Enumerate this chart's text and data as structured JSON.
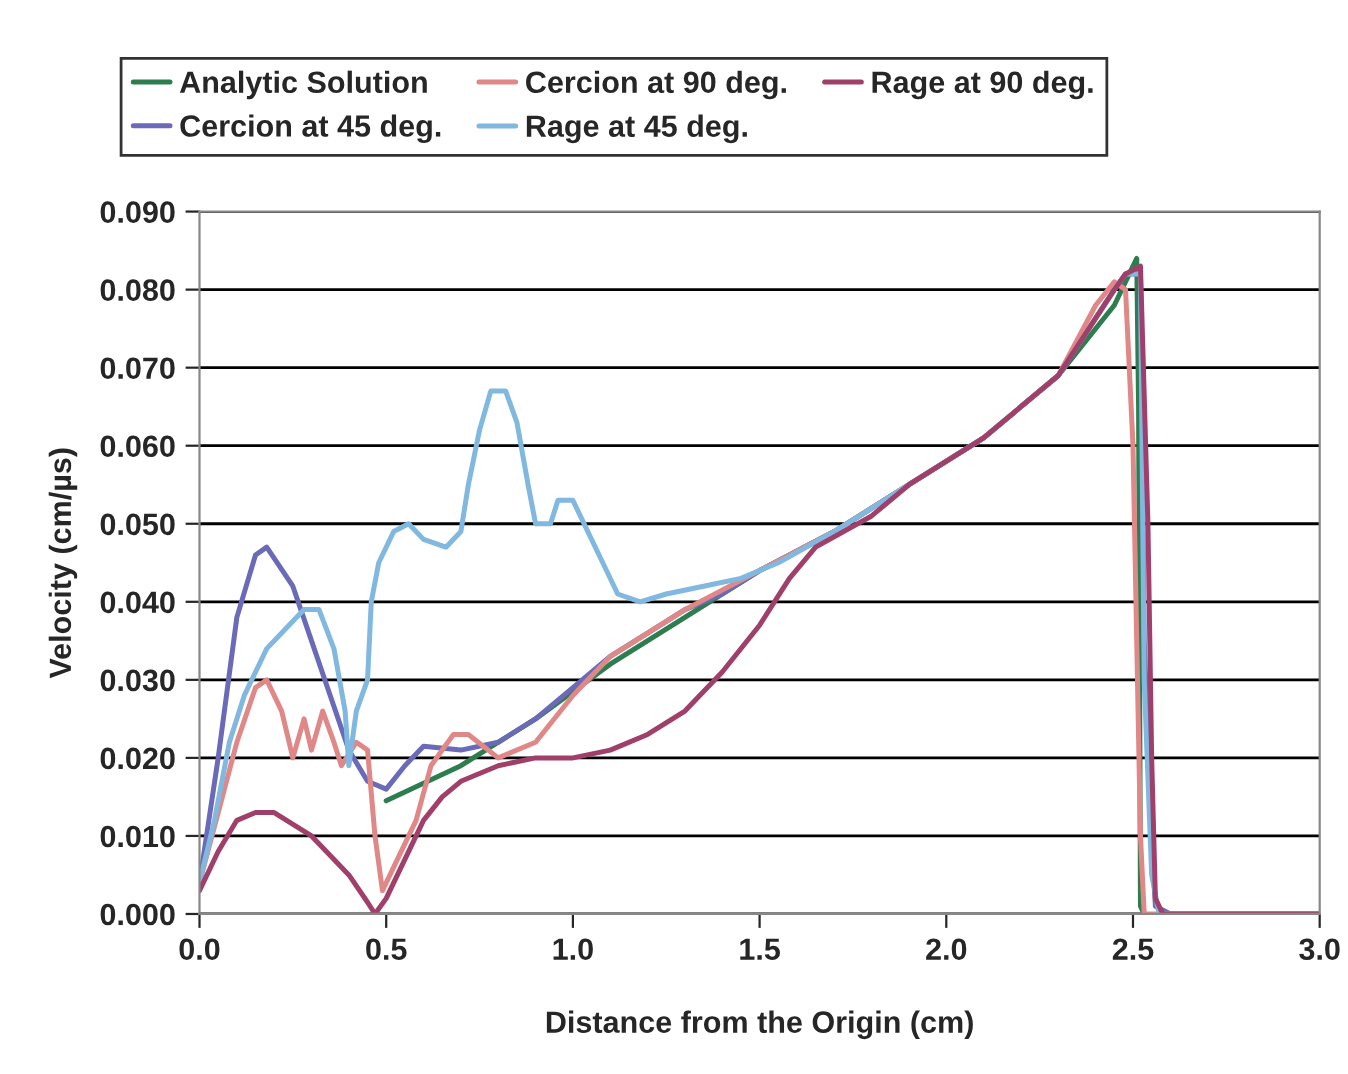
{
  "chart_data": {
    "type": "line",
    "xlabel": "Distance from the Origin (cm)",
    "ylabel": "Velocity (cm/µs)",
    "xlim": [
      0,
      3.0
    ],
    "xticks": [
      {
        "value": 0,
        "label": "0.0"
      },
      {
        "value": 0.5,
        "label": "0.5"
      },
      {
        "value": 1.0,
        "label": "1.0"
      },
      {
        "value": 1.5,
        "label": "1.5"
      },
      {
        "value": 2.0,
        "label": "2.0"
      },
      {
        "value": 2.5,
        "label": "2.5"
      },
      {
        "value": 3.0,
        "label": "3.0"
      }
    ],
    "ylim": [
      0,
      0.09
    ],
    "yticks": [
      {
        "value": 0,
        "label": "0.000"
      },
      {
        "value": 0.01,
        "label": "0.010"
      },
      {
        "value": 0.02,
        "label": "0.020"
      },
      {
        "value": 0.03,
        "label": "0.030"
      },
      {
        "value": 0.04,
        "label": "0.040"
      },
      {
        "value": 0.05,
        "label": "0.050"
      },
      {
        "value": 0.06,
        "label": "0.060"
      },
      {
        "value": 0.07,
        "label": "0.070"
      },
      {
        "value": 0.08,
        "label": "0.080"
      },
      {
        "value": 0.09,
        "label": "0.090"
      }
    ],
    "grid": "y",
    "legend": "top",
    "marker": "none",
    "line_style": "solid",
    "series": [
      {
        "name": "Analytic Solution",
        "color": "#2e7d4f",
        "x": [
          0.5,
          0.7,
          0.9,
          1.1,
          1.3,
          1.5,
          1.7,
          1.9,
          2.1,
          2.3,
          2.45,
          2.51,
          2.515,
          2.52,
          2.53
        ],
        "values": [
          0.0145,
          0.019,
          0.025,
          0.032,
          0.038,
          0.044,
          0.049,
          0.055,
          0.061,
          0.069,
          0.078,
          0.084,
          0.065,
          0.001,
          0.0
        ]
      },
      {
        "name": "Cercion at 45 deg.",
        "color": "#6a6ab8",
        "x": [
          0,
          0.05,
          0.1,
          0.15,
          0.18,
          0.25,
          0.3,
          0.35,
          0.4,
          0.45,
          0.5,
          0.55,
          0.6,
          0.7,
          0.8,
          0.9,
          1.0,
          1.1,
          1.2,
          1.3,
          1.4,
          1.5,
          1.7,
          1.9,
          2.1,
          2.3,
          2.45,
          2.48,
          2.52,
          2.53,
          2.55,
          2.56,
          2.6,
          3.0
        ],
        "values": [
          0.004,
          0.02,
          0.038,
          0.046,
          0.047,
          0.042,
          0.035,
          0.028,
          0.021,
          0.017,
          0.016,
          0.019,
          0.0215,
          0.021,
          0.022,
          0.025,
          0.029,
          0.033,
          0.036,
          0.039,
          0.041,
          0.044,
          0.049,
          0.055,
          0.061,
          0.069,
          0.08,
          0.082,
          0.082,
          0.035,
          0.01,
          0.001,
          0.0,
          0.0
        ]
      },
      {
        "name": "Cercion at 90 deg.",
        "color": "#e08888",
        "x": [
          0,
          0.05,
          0.1,
          0.15,
          0.18,
          0.22,
          0.25,
          0.28,
          0.3,
          0.33,
          0.36,
          0.38,
          0.42,
          0.45,
          0.47,
          0.49,
          0.52,
          0.58,
          0.62,
          0.68,
          0.72,
          0.8,
          0.9,
          1.0,
          1.1,
          1.2,
          1.3,
          1.5,
          1.7,
          1.9,
          2.1,
          2.3,
          2.4,
          2.45,
          2.48,
          2.5,
          2.52,
          2.53,
          3.0
        ],
        "values": [
          0.004,
          0.013,
          0.022,
          0.029,
          0.03,
          0.026,
          0.02,
          0.025,
          0.021,
          0.026,
          0.022,
          0.019,
          0.022,
          0.021,
          0.01,
          0.003,
          0.006,
          0.012,
          0.019,
          0.023,
          0.023,
          0.02,
          0.022,
          0.028,
          0.033,
          0.036,
          0.039,
          0.044,
          0.049,
          0.055,
          0.061,
          0.069,
          0.078,
          0.081,
          0.08,
          0.06,
          0.01,
          0.0,
          0.0
        ]
      },
      {
        "name": "Rage at 45 deg.",
        "color": "#80b8e0",
        "x": [
          0,
          0.04,
          0.08,
          0.12,
          0.18,
          0.22,
          0.28,
          0.32,
          0.36,
          0.39,
          0.4,
          0.42,
          0.45,
          0.46,
          0.48,
          0.52,
          0.56,
          0.6,
          0.66,
          0.7,
          0.72,
          0.75,
          0.78,
          0.82,
          0.85,
          0.88,
          0.9,
          0.94,
          0.96,
          1.0,
          1.04,
          1.08,
          1.12,
          1.18,
          1.25,
          1.35,
          1.45,
          1.55,
          1.7,
          1.9,
          2.1,
          2.3,
          2.45,
          2.48,
          2.52,
          2.53,
          2.55,
          2.57,
          3.0
        ],
        "values": [
          0.004,
          0.012,
          0.022,
          0.028,
          0.034,
          0.036,
          0.039,
          0.039,
          0.034,
          0.026,
          0.019,
          0.026,
          0.03,
          0.04,
          0.045,
          0.049,
          0.05,
          0.048,
          0.047,
          0.049,
          0.055,
          0.062,
          0.067,
          0.067,
          0.063,
          0.055,
          0.05,
          0.05,
          0.053,
          0.053,
          0.049,
          0.045,
          0.041,
          0.04,
          0.041,
          0.042,
          0.043,
          0.045,
          0.049,
          0.055,
          0.061,
          0.069,
          0.08,
          0.082,
          0.082,
          0.03,
          0.005,
          0.0,
          0.0
        ]
      },
      {
        "name": "Rage at 90 deg.",
        "color": "#a0406a",
        "x": [
          0,
          0.05,
          0.1,
          0.15,
          0.2,
          0.3,
          0.4,
          0.45,
          0.47,
          0.5,
          0.55,
          0.6,
          0.65,
          0.7,
          0.8,
          0.9,
          1.0,
          1.1,
          1.2,
          1.3,
          1.4,
          1.5,
          1.58,
          1.65,
          1.8,
          1.9,
          2.1,
          2.3,
          2.45,
          2.48,
          2.52,
          2.54,
          2.55,
          2.56,
          2.58,
          3.0
        ],
        "values": [
          0.003,
          0.008,
          0.012,
          0.013,
          0.013,
          0.01,
          0.005,
          0.0015,
          0.0,
          0.002,
          0.007,
          0.012,
          0.015,
          0.017,
          0.019,
          0.02,
          0.02,
          0.021,
          0.023,
          0.026,
          0.031,
          0.037,
          0.043,
          0.047,
          0.051,
          0.055,
          0.061,
          0.069,
          0.08,
          0.082,
          0.083,
          0.05,
          0.02,
          0.002,
          0.0,
          0.0
        ]
      }
    ]
  }
}
